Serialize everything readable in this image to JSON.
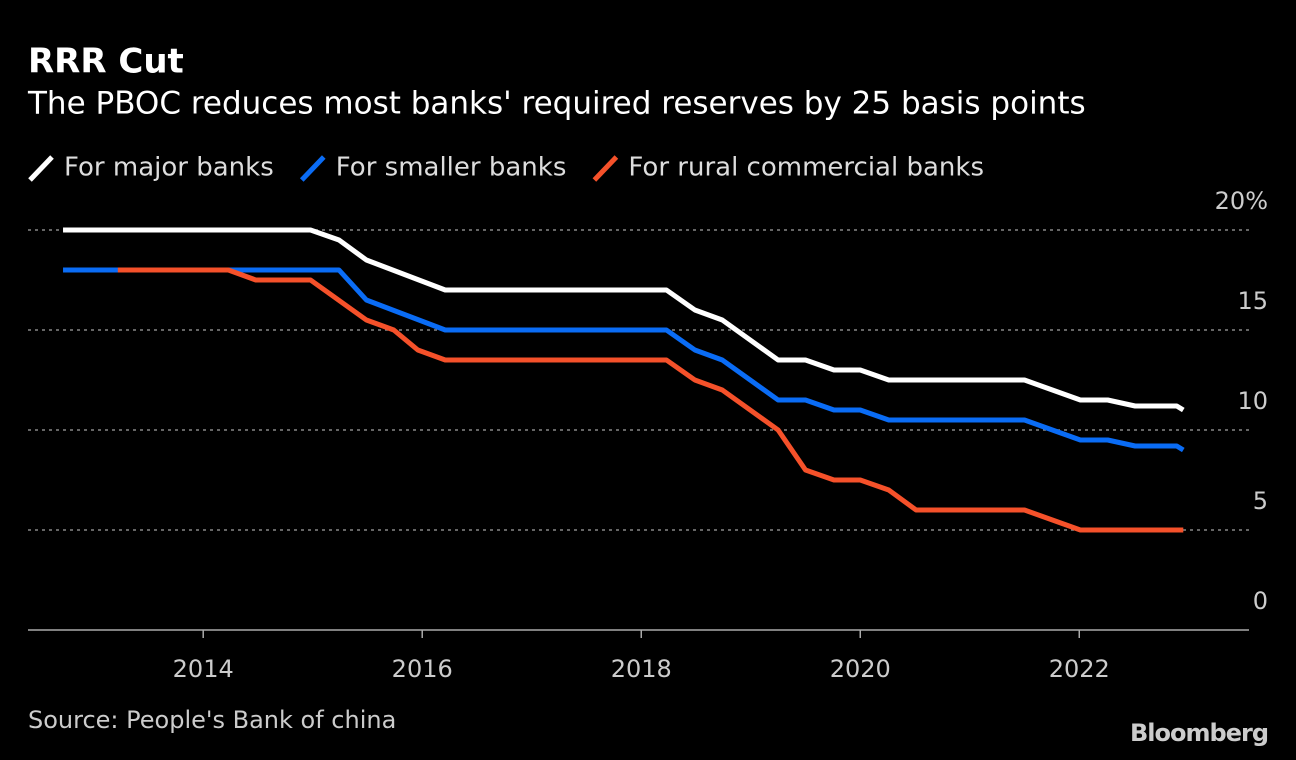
{
  "chart_data": {
    "type": "line",
    "title": "RRR Cut",
    "subtitle": "The PBOC reduces most banks' required reserves by 25 basis points",
    "source": "Source: People's Bank of china",
    "brand": "Bloomberg",
    "xlim": [
      2012.4,
      2023.55
    ],
    "xticks": [
      2014,
      2016,
      2018,
      2020,
      2022
    ],
    "ylim": [
      0,
      20
    ],
    "yticks": [
      0,
      5,
      10,
      15,
      {
        "value": 20,
        "label": "20%"
      }
    ],
    "grid": true,
    "series": [
      {
        "name": "For major banks",
        "color": "#ffffff",
        "x": [
          2012.72,
          2014.98,
          2015.24,
          2015.49,
          2016.21,
          2018.23,
          2018.49,
          2018.74,
          2019.25,
          2019.5,
          2019.76,
          2020.0,
          2020.26,
          2021.5,
          2022.01,
          2022.26,
          2022.51,
          2022.89,
          2022.95
        ],
        "values": [
          20,
          20,
          19.5,
          18.5,
          17,
          17,
          16,
          15.5,
          13.5,
          13.5,
          13,
          13,
          12.5,
          12.5,
          11.5,
          11.5,
          11.2,
          11.2,
          11
        ]
      },
      {
        "name": "For smaller banks",
        "color": "#0a6cf5",
        "x": [
          2012.72,
          2015.24,
          2015.49,
          2016.21,
          2018.23,
          2018.49,
          2018.74,
          2019.25,
          2019.5,
          2019.76,
          2020.0,
          2020.26,
          2021.5,
          2022.01,
          2022.26,
          2022.51,
          2022.89,
          2022.95
        ],
        "values": [
          18,
          18,
          16.5,
          15,
          15,
          14,
          13.5,
          11.5,
          11.5,
          11,
          11,
          10.5,
          10.5,
          9.5,
          9.5,
          9.2,
          9.2,
          9
        ]
      },
      {
        "name": "For rural commercial banks",
        "color": "#f5512a",
        "x": [
          2013.22,
          2014.23,
          2014.48,
          2014.98,
          2015.49,
          2015.74,
          2015.96,
          2016.21,
          2018.23,
          2018.49,
          2018.74,
          2019.25,
          2019.5,
          2019.76,
          2020.0,
          2020.26,
          2020.51,
          2021.5,
          2022.01,
          2022.95
        ],
        "values": [
          18,
          18,
          17.5,
          17.5,
          15.5,
          15,
          14,
          13.5,
          13.5,
          12.5,
          12,
          10,
          8,
          7.5,
          7.5,
          7,
          6,
          6,
          5,
          5
        ]
      }
    ]
  }
}
